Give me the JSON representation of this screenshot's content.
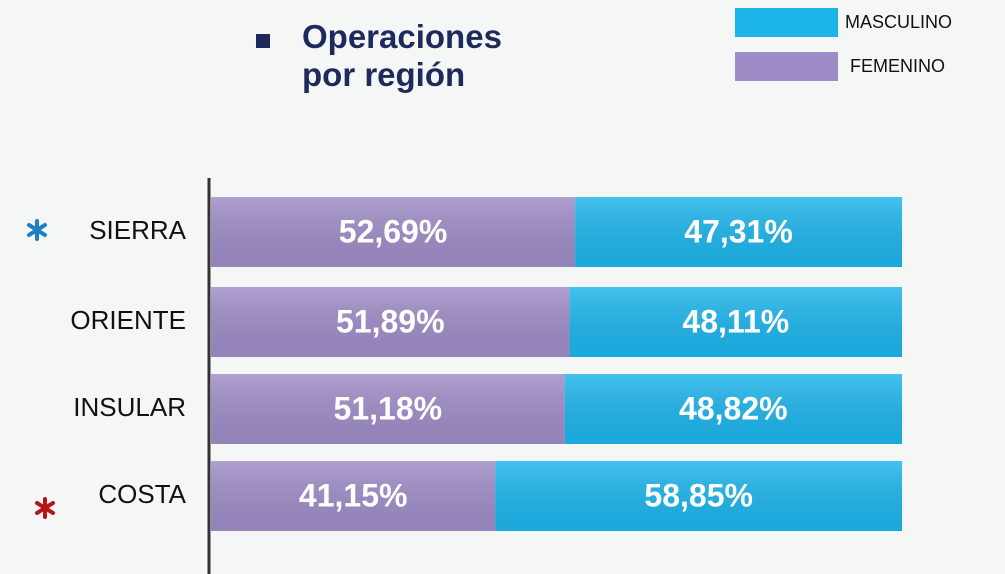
{
  "chart_data": {
    "type": "bar",
    "orientation": "horizontal",
    "stacked": true,
    "title": "Operaciones por región",
    "categories": [
      "SIERRA",
      "ORIENTE",
      "INSULAR",
      "COSTA"
    ],
    "series": [
      {
        "name": "FEMENINO",
        "color": "#9e8cc6",
        "values": [
          52.69,
          51.89,
          51.18,
          41.15
        ],
        "value_labels": [
          "52,69%",
          "51,89%",
          "51,18%",
          "41,15%"
        ]
      },
      {
        "name": "MASCULINO",
        "color": "#1db4ea",
        "values": [
          47.31,
          48.11,
          48.82,
          58.85
        ],
        "value_labels": [
          "47,31%",
          "48,11%",
          "48,82%",
          "58,85%"
        ]
      }
    ],
    "xlim": [
      0,
      100
    ],
    "legend": "top-right"
  }
}
